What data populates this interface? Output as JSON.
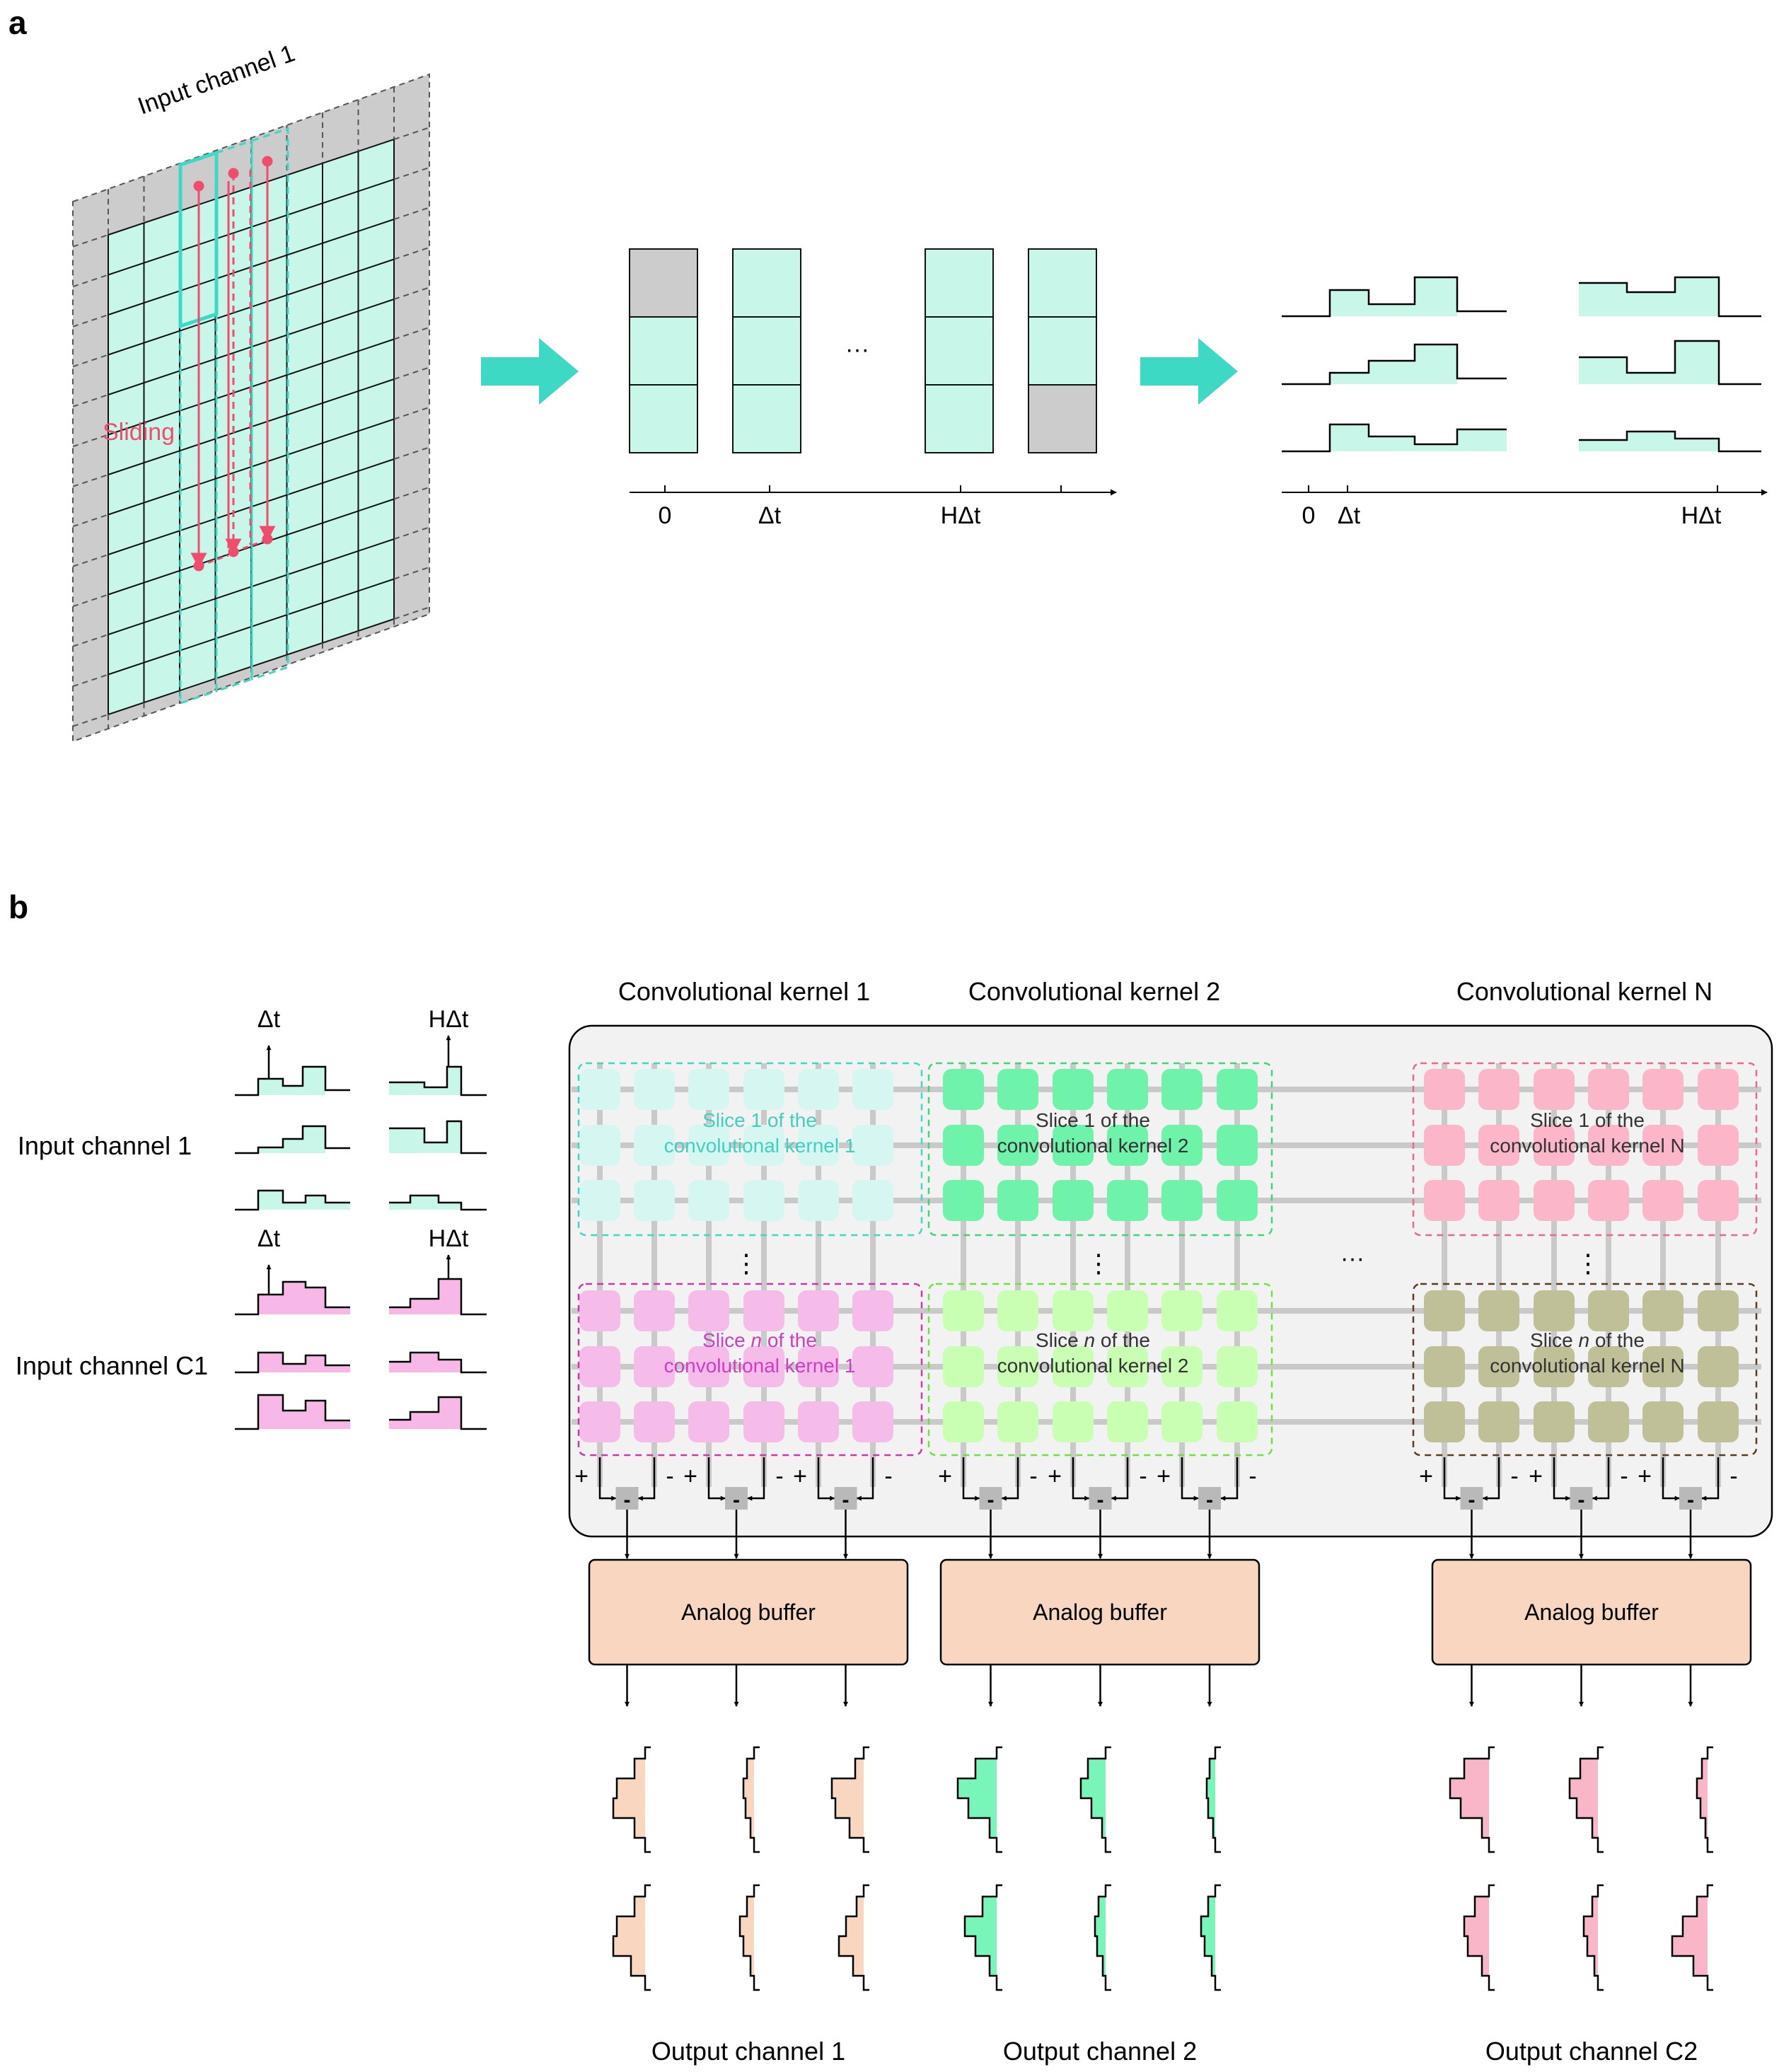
{
  "panel_a": {
    "label": "a",
    "grid_title": "Input channel 1",
    "sliding_label": "Sliding",
    "ellipsis": "···",
    "axis1_ticks": [
      "0",
      "Δt",
      "HΔt"
    ],
    "axis2_ticks": [
      "0",
      "Δt",
      "HΔt"
    ]
  },
  "panel_b": {
    "label": "b",
    "input_channels": [
      {
        "name": "Input channel 1",
        "t1": "Δt",
        "t2": "HΔt"
      },
      {
        "name": "Input channel C1",
        "t1": "Δt",
        "t2": "HΔt"
      }
    ],
    "kernels": [
      {
        "title": "Convolutional kernel 1",
        "slice1": [
          "Slice 1 of the",
          "convolutional kernel 1"
        ],
        "slicen": [
          "Slice ",
          "n",
          " of the",
          "convolutional kernel 1"
        ],
        "buffer": "Analog buffer",
        "output": "Output channel 1"
      },
      {
        "title": "Convolutional kernel 2",
        "slice1": [
          "Slice 1 of the",
          "convolutional kernel 2"
        ],
        "slicen": [
          "Slice ",
          "n",
          " of the",
          "convolutional kernel 2"
        ],
        "buffer": "Analog buffer",
        "output": "Output channel 2"
      },
      {
        "title": "Convolutional kernel N",
        "slice1": [
          "Slice 1 of the",
          "convolutional kernel N"
        ],
        "slicen": [
          "Slice ",
          "n",
          " of the",
          "convolutional kernel N"
        ],
        "buffer": "Analog buffer",
        "output": "Output channel C2"
      }
    ],
    "vdots": "⋮",
    "hdots": "···",
    "plus": "+",
    "minus": "-"
  },
  "colors": {
    "cyan": "#c8f7ea",
    "teal_arrow": "#3dd9c4",
    "grey": "#cccccc",
    "sliding": "#ef4d6e",
    "pink_input": "#f7b8e8",
    "peach": "#f8d6bf",
    "green_out": "#78f5b8",
    "pink_out": "#f9b6c8",
    "k1_s1": "#d6f7f1",
    "k1_sn": "#f6bce9",
    "k2_s1": "#6ff2a9",
    "k2_sn": "#c9ffb3",
    "kN_s1": "#fbb6c9",
    "kN_sn": "#bfbf98"
  }
}
